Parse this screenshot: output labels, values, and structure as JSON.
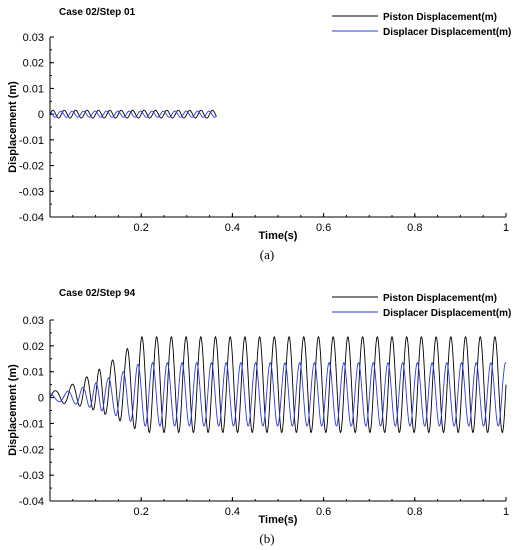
{
  "chart_data": [
    {
      "type": "line",
      "panel_label": "(a)",
      "title": "Case 02/Step 01",
      "xlabel": "Time(s)",
      "ylabel": "Displacement (m)",
      "xlim": [
        0,
        1
      ],
      "ylim": [
        -0.04,
        0.03
      ],
      "x_ticks": [
        0.2,
        0.4,
        0.6,
        0.8,
        1
      ],
      "x_tick_labels": [
        "0.2",
        "0.4",
        "0.6",
        "0.8",
        "1"
      ],
      "y_ticks": [
        -0.04,
        -0.03,
        -0.02,
        -0.01,
        0,
        0.01,
        0.02,
        0.03
      ],
      "y_tick_labels": [
        "-0.04",
        "-0.03",
        "-0.02",
        "-0.01",
        "0",
        "0.01",
        "0.02",
        "0.03"
      ],
      "legend_position": "top-right",
      "series": [
        {
          "name": "Piston Displacement(m)",
          "color": "#000000",
          "amplitude": 0.0015,
          "frequency_hz": 40,
          "x_range": [
            0,
            0.365
          ]
        },
        {
          "name": "Displacer Displacement(m)",
          "color": "#2a3be0",
          "amplitude": 0.0012,
          "frequency_hz": 40,
          "x_range": [
            0,
            0.365
          ]
        }
      ]
    },
    {
      "type": "line",
      "panel_label": "(b)",
      "title": "Case 02/Step 94",
      "xlabel": "Time(s)",
      "ylabel": "Displacement (m)",
      "xlim": [
        0,
        1
      ],
      "ylim": [
        -0.04,
        0.03
      ],
      "x_ticks": [
        0.2,
        0.4,
        0.6,
        0.8,
        1
      ],
      "x_tick_labels": [
        "0.2",
        "0.4",
        "0.6",
        "0.8",
        "1"
      ],
      "y_ticks": [
        -0.04,
        -0.03,
        -0.02,
        -0.01,
        0,
        0.01,
        0.02,
        0.03
      ],
      "y_tick_labels": [
        "-0.04",
        "-0.03",
        "-0.02",
        "-0.01",
        "0",
        "0.01",
        "0.02",
        "0.03"
      ],
      "legend_position": "top-right",
      "series": [
        {
          "name": "Piston Displacement(m)",
          "color": "#000000",
          "steady_max": 0.0235,
          "steady_min": -0.0135,
          "frequency_hz": 31,
          "x_range": [
            0,
            1
          ]
        },
        {
          "name": "Displacer Displacement(m)",
          "color": "#2a3be0",
          "steady_max": 0.0135,
          "steady_min": -0.011,
          "frequency_hz": 31,
          "x_range": [
            0,
            1
          ]
        }
      ]
    }
  ]
}
